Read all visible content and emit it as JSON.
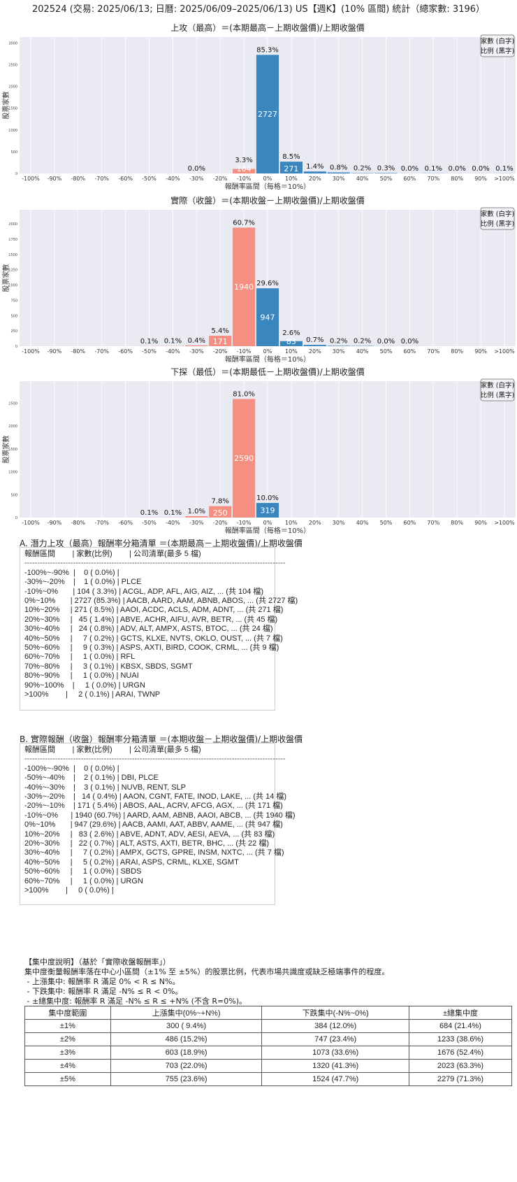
{
  "title": "202524 (交易: 2025/06/13; 日曆: 2025/06/09–2025/06/13) US【週K】(10% 區間) 統計（總家數: 3196）",
  "colors": {
    "up": "#3a87c0",
    "down": "#f48f82",
    "background": "#eaeaf2",
    "grid": "#ffffff"
  },
  "chart_data": [
    {
      "type": "bar",
      "title": "上攻（最高）＝(本期最高－上期收盤價)/上期收盤價",
      "xlabel": "報酬率區間（每格＝10%）",
      "ylabel": "股票家數",
      "legend": [
        "家數 (白字)",
        "比例 (黑字)"
      ],
      "legend_position": "top-right",
      "categories": [
        "-100%",
        "-90%",
        "-80%",
        "-70%",
        "-60%",
        "-50%",
        "-40%",
        "-30%",
        "-20%",
        "-10%",
        "0%",
        "10%",
        "20%",
        "30%",
        "40%",
        "50%",
        "60%",
        "70%",
        "80%",
        "90%",
        ">100%"
      ],
      "values": [
        0,
        null,
        null,
        null,
        null,
        null,
        null,
        1,
        null,
        104,
        2727,
        271,
        45,
        24,
        7,
        9,
        1,
        3,
        1,
        1,
        2
      ],
      "pct_labels": [
        "",
        "",
        "",
        "",
        "",
        "",
        "",
        "0.0%",
        "",
        "3.3%",
        "85.3%",
        "8.5%",
        "1.4%",
        "0.8%",
        "0.2%",
        "0.3%",
        "0.0%",
        "0.1%",
        "0.0%",
        "0.0%",
        "0.1%"
      ],
      "yticks": [
        0,
        500,
        1000,
        1500,
        2000,
        2500,
        3000
      ],
      "ylim": [
        0,
        3136
      ],
      "grid": true
    },
    {
      "type": "bar",
      "title": "實際（收盤）＝(本期收盤－上期收盤價)/上期收盤價",
      "xlabel": "報酬率區間（每格＝10%）",
      "ylabel": "股票家數",
      "legend": [
        "家數 (白字)",
        "比例 (黑字)"
      ],
      "legend_position": "top-right",
      "categories": [
        "-100%",
        "-90%",
        "-80%",
        "-70%",
        "-60%",
        "-50%",
        "-40%",
        "-30%",
        "-20%",
        "-10%",
        "0%",
        "10%",
        "20%",
        "30%",
        "40%",
        "50%",
        "60%",
        "70%",
        "80%",
        "90%",
        ">100%"
      ],
      "values": [
        0,
        null,
        null,
        null,
        null,
        2,
        3,
        14,
        171,
        1940,
        947,
        83,
        22,
        7,
        5,
        1,
        1,
        null,
        null,
        null,
        0
      ],
      "pct_labels": [
        "",
        "",
        "",
        "",
        "",
        "0.1%",
        "0.1%",
        "0.4%",
        "5.4%",
        "60.7%",
        "29.6%",
        "2.6%",
        "0.7%",
        "0.2%",
        "0.2%",
        "0.0%",
        "0.0%",
        "",
        "",
        "",
        ""
      ],
      "yticks": [
        0,
        250,
        500,
        750,
        1000,
        1250,
        1500,
        1750,
        2000
      ],
      "ylim": [
        0,
        2231
      ],
      "grid": true
    },
    {
      "type": "bar",
      "title": "下探（最低）＝(本期最低－上期收盤價)/上期收盤價",
      "xlabel": "報酬率區間（每格＝10%）",
      "ylabel": "股票家數",
      "legend": [
        "家數 (白字)",
        "比例 (黑字)"
      ],
      "legend_position": "top-right",
      "categories": [
        "-100%",
        "-90%",
        "-80%",
        "-70%",
        "-60%",
        "-50%",
        "-40%",
        "-30%",
        "-20%",
        "-10%",
        "0%",
        "10%",
        "20%",
        "30%",
        "40%",
        "50%",
        "60%",
        "70%",
        "80%",
        "90%",
        ">100%"
      ],
      "values": [
        null,
        null,
        null,
        null,
        null,
        3,
        3,
        31,
        250,
        2590,
        319,
        null,
        null,
        null,
        null,
        null,
        null,
        null,
        null,
        null,
        null
      ],
      "pct_labels": [
        "",
        "",
        "",
        "",
        "",
        "0.1%",
        "0.1%",
        "1.0%",
        "7.8%",
        "81.0%",
        "10.0%",
        "",
        "",
        "",
        "",
        "",
        "",
        "",
        "",
        "",
        ""
      ],
      "yticks": [
        0,
        500,
        1000,
        1500,
        2000,
        2500
      ],
      "ylim": [
        0,
        2978
      ],
      "grid": true
    }
  ],
  "list_a": {
    "title": "A. 潛力上攻（最高）報酬率分箱清單 ＝(本期最高－上期收盤價)/上期收盤價",
    "header": "報酬區間        | 家數(比例)        | 公司清單(最多 5 檔)",
    "separator": "------------------------------------------------------------------------------------------------------",
    "rows": [
      "-100%~-90%  |    0 ( 0.0%) |",
      "-30%~-20%    |    1 ( 0.0%) | PLCE",
      "-10%~0%       | 104 ( 3.3%) | ACGL, ADP, AFL, AIG, AIZ, ... (共 104 檔)",
      "0%~10%       | 2727 (85.3%) | AACB, AARD, AAM, ABNB, ABOS, ... (共 2727 檔)",
      "10%~20%     | 271 ( 8.5%) | AAOI, ACDC, ACLS, ADM, ADNT, ... (共 271 檔)",
      "20%~30%     |   45 ( 1.4%) | ABVE, ACHR, AIFU, AVR, BETR, ... (共 45 檔)",
      "30%~40%     |   24 ( 0.8%) | ADV, ALT, AMPX, ASTS, BTOC, ... (共 24 檔)",
      "40%~50%     |     7 ( 0.2%) | GCTS, KLXE, NVTS, OKLO, OUST, ... (共 7 檔)",
      "50%~60%     |     9 ( 0.3%) | ASPS, AXTI, BIRD, COOK, CRML, ... (共 9 檔)",
      "60%~70%     |     1 ( 0.0%) | RFL",
      "70%~80%     |     3 ( 0.1%) | KBSX, SBDS, SGMT",
      "80%~90%     |     1 ( 0.0%) | NUAI",
      "90%~100%    |     1 ( 0.0%) | URGN",
      ">100%        |     2 ( 0.1%) | ARAI, TWNP"
    ]
  },
  "list_b": {
    "title": "B. 實際報酬（收盤）報酬率分箱清單 ＝(本期收盤－上期收盤價)/上期收盤價",
    "header": "報酬區間        | 家數(比例)        | 公司清單(最多 5 檔)",
    "separator": "------------------------------------------------------------------------------------------------------",
    "rows": [
      "-100%~-90%  |    0 ( 0.0%) |",
      "-50%~-40%    |    2 ( 0.1%) | DBI, PLCE",
      "-40%~-30%    |    3 ( 0.1%) | NUVB, RENT, SLP",
      "-30%~-20%    |   14 ( 0.4%) | AAON, CGNT, FATE, INOD, LAKE, ... (共 14 檔)",
      "-20%~-10%    | 171 ( 5.4%) | ABOS, AAL, ACRV, AFCG, AGX, ... (共 171 檔)",
      "-10%~0%      | 1940 (60.7%) | AARD, AAM, ABNB, AAOI, ABCB, ... (共 1940 檔)",
      "0%~10%       | 947 (29.6%) | AACB, AAMI, AAT, ABBV, AAME, ... (共 947 檔)",
      "10%~20%     |   83 ( 2.6%) | ABVE, ADNT, ADV, AESI, AEVA, ... (共 83 檔)",
      "20%~30%     |   22 ( 0.7%) | ALT, ASTS, AXTI, BETR, BHC, ... (共 22 檔)",
      "30%~40%     |     7 ( 0.2%) | AMPX, GCTS, GPRE, INSM, NXTC, ... (共 7 檔)",
      "40%~50%     |     5 ( 0.2%) | ARAI, ASPS, CRML, KLXE, SGMT",
      "50%~60%     |     1 ( 0.0%) | SBDS",
      "60%~70%     |     1 ( 0.0%) | URGN",
      ">100%        |     0 ( 0.0%) |"
    ]
  },
  "concentration": {
    "lines": [
      "【集中度說明】（基於「實際收盤報酬率」）",
      "集中度衡量報酬率落在中心小區間（±1% 至 ±5%）的股票比例，代表市場共識度或缺乏極端事件的程度。",
      " - 上漲集中: 報酬率 R 滿足 0% < R ≤ N%。",
      " - 下跌集中: 報酬率 R 滿足 -N% ≤ R < 0%。",
      " - ±總集中度: 報酬率 R 滿足 -N% ≤ R ≤ +N% (不含 R=0%)。"
    ],
    "headers": [
      "集中度範圍",
      "上漲集中(0%~+N%)",
      "下跌集中(-N%~0%)",
      "±總集中度"
    ],
    "rows": [
      [
        "±1%",
        "300 ( 9.4%)",
        "384 (12.0%)",
        "684 (21.4%)"
      ],
      [
        "±2%",
        "486 (15.2%)",
        "747 (23.4%)",
        "1233 (38.6%)"
      ],
      [
        "±3%",
        "603 (18.9%)",
        "1073 (33.6%)",
        "1676 (52.4%)"
      ],
      [
        "±4%",
        "703 (22.0%)",
        "1320 (41.3%)",
        "2023 (63.3%)"
      ],
      [
        "±5%",
        "755 (23.6%)",
        "1524 (47.7%)",
        "2279 (71.3%)"
      ]
    ]
  }
}
